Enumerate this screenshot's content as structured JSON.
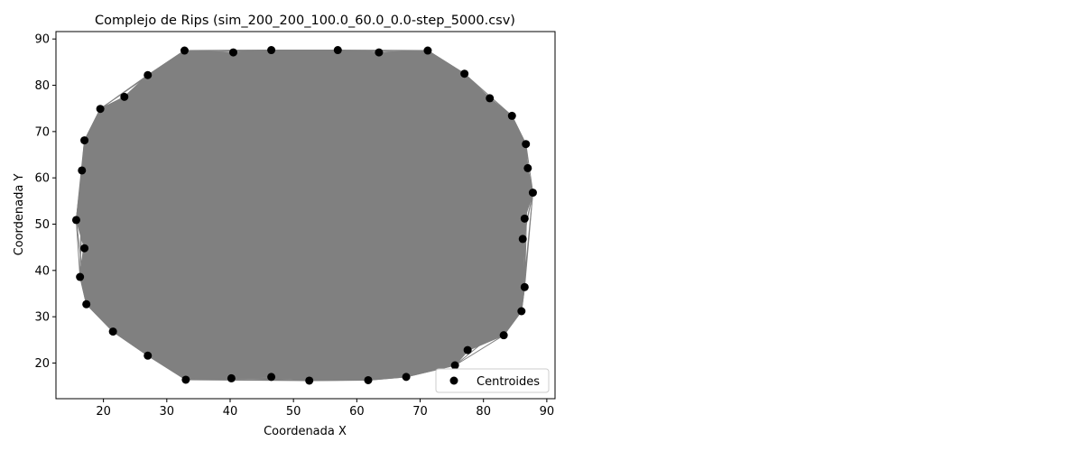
{
  "chart_data": {
    "type": "scatter",
    "title": "Complejo de Rips (sim_200_200_100.0_60.0_0.0-step_5000.csv)",
    "xlabel": "Coordenada X",
    "ylabel": "Coordenada Y",
    "xlim": [
      12.5,
      91.3
    ],
    "ylim": [
      12.3,
      91.6
    ],
    "xticks": [
      20,
      30,
      40,
      50,
      60,
      70,
      80,
      90
    ],
    "yticks": [
      20,
      30,
      40,
      50,
      60,
      70,
      80,
      90
    ],
    "grid": false,
    "legend": {
      "position": "lower-right",
      "entries": [
        "Centroides"
      ]
    },
    "colors": {
      "points": "#000000",
      "edges": "#808080"
    },
    "series": [
      {
        "name": "Centroides",
        "kind": "scatter",
        "x": [
          32.8,
          40.5,
          46.5,
          57.0,
          63.5,
          71.2,
          77.0,
          81.0,
          84.5,
          86.7,
          87.0,
          87.8,
          86.5,
          86.2,
          86.5,
          86.0,
          83.2,
          77.5,
          75.5,
          67.8,
          61.8,
          52.5,
          46.5,
          40.2,
          33.0,
          27.0,
          21.5,
          17.3,
          16.3,
          17.0,
          15.7,
          16.6,
          17.0,
          19.5,
          23.3,
          27.0
        ],
        "y": [
          87.5,
          87.1,
          87.6,
          87.6,
          87.1,
          87.5,
          82.5,
          77.2,
          73.4,
          67.3,
          62.1,
          56.8,
          51.2,
          46.8,
          36.4,
          31.2,
          26.0,
          22.8,
          19.5,
          17.0,
          16.3,
          16.2,
          17.0,
          16.7,
          16.4,
          21.6,
          26.8,
          32.7,
          38.6,
          44.8,
          50.9,
          61.6,
          68.1,
          74.9,
          77.5,
          82.2
        ]
      }
    ]
  }
}
